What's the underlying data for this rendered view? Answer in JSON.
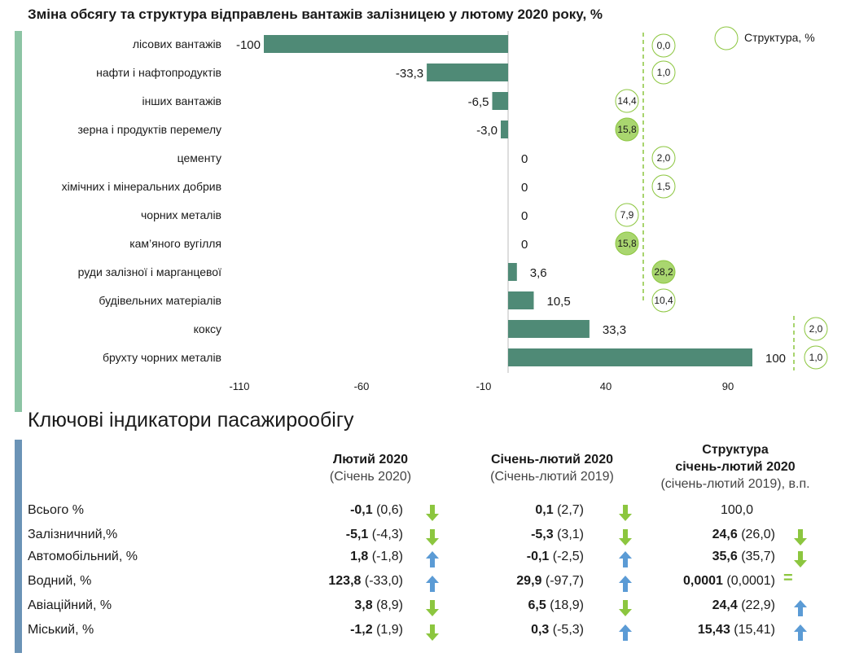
{
  "chart_data": {
    "type": "bar",
    "orientation": "horizontal",
    "title": "Зміна обсягу та структура відправлень вантажів залізницею у лютому 2020 року, %",
    "categories": [
      "лісових вантажів",
      "нафти і нафтопродуктів",
      "інших вантажів",
      "зерна і  продуктів перемелу",
      "цементу",
      "хімічних і мінеральних добрив",
      "чорних металів",
      "кам’яного вугілля",
      "руди залізної і марганцевої",
      "будівельних матеріалів",
      "коксу",
      "брухту чорних металів"
    ],
    "values": [
      -100,
      -33.3,
      -6.5,
      -3.0,
      0,
      0,
      0,
      0,
      3.6,
      10.5,
      33.3,
      100
    ],
    "value_labels": [
      "-100",
      "-33,3",
      "-6,5",
      "-3,0",
      "0",
      "0",
      "0",
      "0",
      "3,6",
      "10,5",
      "33,3",
      "100"
    ],
    "xlim": [
      -110,
      110
    ],
    "xticks": [
      -110,
      -60,
      -10,
      40,
      90
    ],
    "xtick_labels": [
      "-110",
      "-60",
      "-10",
      "40",
      "90"
    ],
    "bar_color": "#4f8a76",
    "structure": {
      "legend_label": "Структура, %",
      "values": [
        "0,0",
        "1,0",
        "14,4",
        "15,8",
        "2,0",
        "1,5",
        "7,9",
        "15,8",
        "28,2",
        "10,4",
        "2,0",
        "1,0"
      ],
      "highlight": [
        false,
        false,
        false,
        true,
        false,
        false,
        false,
        true,
        true,
        false,
        false,
        false
      ],
      "highlight_color": "#a9d66f",
      "circle_border": "#8cc63f"
    }
  },
  "passenger": {
    "title": "Ключові індикатори пасажирообігу",
    "col1": {
      "bold": "Лютий 2020",
      "normal": "(Січень 2020)"
    },
    "col2": {
      "bold": "Січень-лютий 2020",
      "normal": "(Січень-лютий 2019)"
    },
    "col3": {
      "bold1": "Структура",
      "bold2": "січень-лютий 2020",
      "normal": "(січень-лютий 2019), в.п."
    },
    "rows": [
      {
        "label": "Всього %",
        "c1b": "-0,1",
        "c1n": " (0,6)",
        "c1a": "down",
        "c2b": "0,1",
        "c2n": " (2,7)",
        "c2a": "down",
        "c3b": "",
        "c3n": "100,0",
        "c3a": ""
      },
      {
        "label": "Залізничний,%",
        "c1b": "-5,1",
        "c1n": " (-4,3)",
        "c1a": "down",
        "c2b": "-5,3",
        "c2n": " (3,1)",
        "c2a": "down",
        "c3b": "24,6",
        "c3n": " (26,0)",
        "c3a": "down"
      },
      {
        "label": "Автомобільний, %",
        "c1b": "1,8",
        "c1n": " (-1,8)",
        "c1a": "up",
        "c2b": "-0,1",
        "c2n": " (-2,5)",
        "c2a": "up",
        "c3b": "35,6",
        "c3n": " (35,7)",
        "c3a": "down"
      },
      {
        "label": "Водний, %",
        "c1b": "123,8",
        "c1n": " (-33,0)",
        "c1a": "up",
        "c2b": "29,9",
        "c2n": " (-97,7)",
        "c2a": "up",
        "c3b": "0,0001",
        "c3n": " (0,0001)",
        "c3a": "equal"
      },
      {
        "label": "Авіаційний, %",
        "c1b": "3,8",
        "c1n": " (8,9)",
        "c1a": "down",
        "c2b": "6,5",
        "c2n": " (18,9)",
        "c2a": "down",
        "c3b": "24,4",
        "c3n": " (22,9)",
        "c3a": "up"
      },
      {
        "label": "Міський, %",
        "c1b": "-1,2",
        "c1n": " (1,9)",
        "c1a": "down",
        "c2b": "0,3",
        "c2n": " (-5,3)",
        "c2a": "up",
        "c3b": "15,43",
        "c3n": " (15,41)",
        "c3a": "up"
      }
    ],
    "colors": {
      "down": "#8cc63f",
      "up": "#5b9bd5",
      "equal": "#8cc63f"
    }
  }
}
